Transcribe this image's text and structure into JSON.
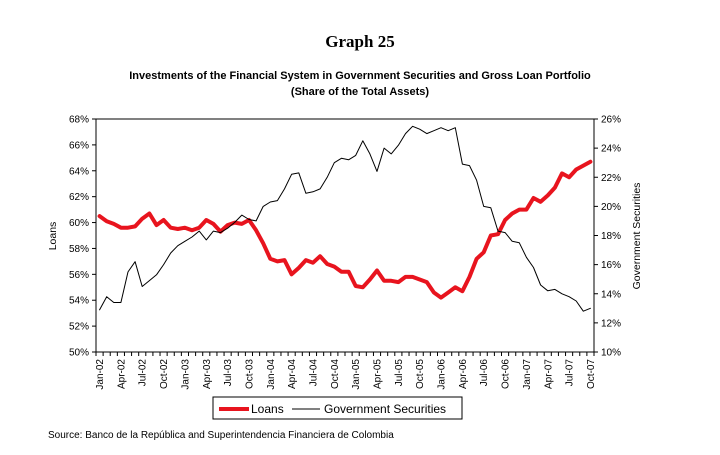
{
  "header": {
    "graph_label": "Graph 25",
    "title_line1": "Investments of the Financial System in Government Securities and Gross Loan Portfolio",
    "title_line2": "(Share of the Total Assets)"
  },
  "source": "Source: Banco de la República and Superintendencia Financiera de Colombia",
  "colors": {
    "loans": "#e8141e",
    "government_securities": "#000000"
  },
  "chart_data": {
    "type": "line",
    "title": "Investments of the Financial System in Government Securities and Gross Loan Portfolio (Share of the Total Assets)",
    "ylabel_left": "Loans",
    "ylabel_right": "Government Securities",
    "ylim_left": [
      50,
      68
    ],
    "ylim_right": [
      10,
      26
    ],
    "yticks_left": [
      "50%",
      "52%",
      "54%",
      "56%",
      "58%",
      "60%",
      "62%",
      "64%",
      "66%",
      "68%"
    ],
    "yticks_right": [
      "10%",
      "12%",
      "14%",
      "16%",
      "18%",
      "20%",
      "22%",
      "24%",
      "26%"
    ],
    "x_tick_labels": [
      "Jan-02",
      "Apr-02",
      "Jul-02",
      "Oct-02",
      "Jan-03",
      "Apr-03",
      "Jul-03",
      "Oct-03",
      "Jan-04",
      "Apr-04",
      "Jul-04",
      "Oct-04",
      "Jan-05",
      "Apr-05",
      "Jul-05",
      "Oct-05",
      "Jan-06",
      "Apr-06",
      "Jul-06",
      "Oct-06",
      "Jan-07",
      "Apr-07",
      "Jul-07",
      "Oct-07"
    ],
    "x_start": "Jan-02",
    "x_end": "Oct-07",
    "frequency": "monthly",
    "grid": false,
    "legend_position": "bottom",
    "series": [
      {
        "name": "Loans",
        "axis": "left",
        "values": [
          60.5,
          60.1,
          59.9,
          59.6,
          59.6,
          59.7,
          60.3,
          60.7,
          59.8,
          60.2,
          59.6,
          59.5,
          59.6,
          59.4,
          59.6,
          60.2,
          59.9,
          59.3,
          59.8,
          60.0,
          59.9,
          60.2,
          59.4,
          58.4,
          57.2,
          57.0,
          57.1,
          56.0,
          56.5,
          57.1,
          56.9,
          57.4,
          56.8,
          56.6,
          56.2,
          56.2,
          55.1,
          55.0,
          55.6,
          56.3,
          55.5,
          55.5,
          55.4,
          55.8,
          55.8,
          55.6,
          55.4,
          54.6,
          54.2,
          54.6,
          55.0,
          54.7,
          55.8,
          57.2,
          57.7,
          59.0,
          59.1,
          60.2,
          60.7,
          61.0,
          61.0,
          61.9,
          61.6,
          62.1,
          62.7,
          63.8,
          63.5,
          64.1,
          64.4,
          64.7
        ]
      },
      {
        "name": "Government Securities",
        "axis": "right",
        "values": [
          12.9,
          13.8,
          13.4,
          13.4,
          15.5,
          16.2,
          14.5,
          14.9,
          15.3,
          16.0,
          16.8,
          17.3,
          17.6,
          17.9,
          18.3,
          17.7,
          18.3,
          18.2,
          18.5,
          18.9,
          19.4,
          19.1,
          19.0,
          20.0,
          20.3,
          20.4,
          21.2,
          22.2,
          22.3,
          20.9,
          21.0,
          21.2,
          22.0,
          23.0,
          23.3,
          23.2,
          23.5,
          24.5,
          23.6,
          22.4,
          24.0,
          23.6,
          24.2,
          25.0,
          25.5,
          25.3,
          25.0,
          25.2,
          25.4,
          25.2,
          25.4,
          22.9,
          22.8,
          21.8,
          20.0,
          19.9,
          18.3,
          18.2,
          17.6,
          17.5,
          16.5,
          15.8,
          14.6,
          14.2,
          14.3,
          14.0,
          13.8,
          13.5,
          12.8,
          13.0
        ]
      }
    ]
  },
  "legend": {
    "items": [
      {
        "label": "Loans"
      },
      {
        "label": "Government Securities"
      }
    ]
  }
}
